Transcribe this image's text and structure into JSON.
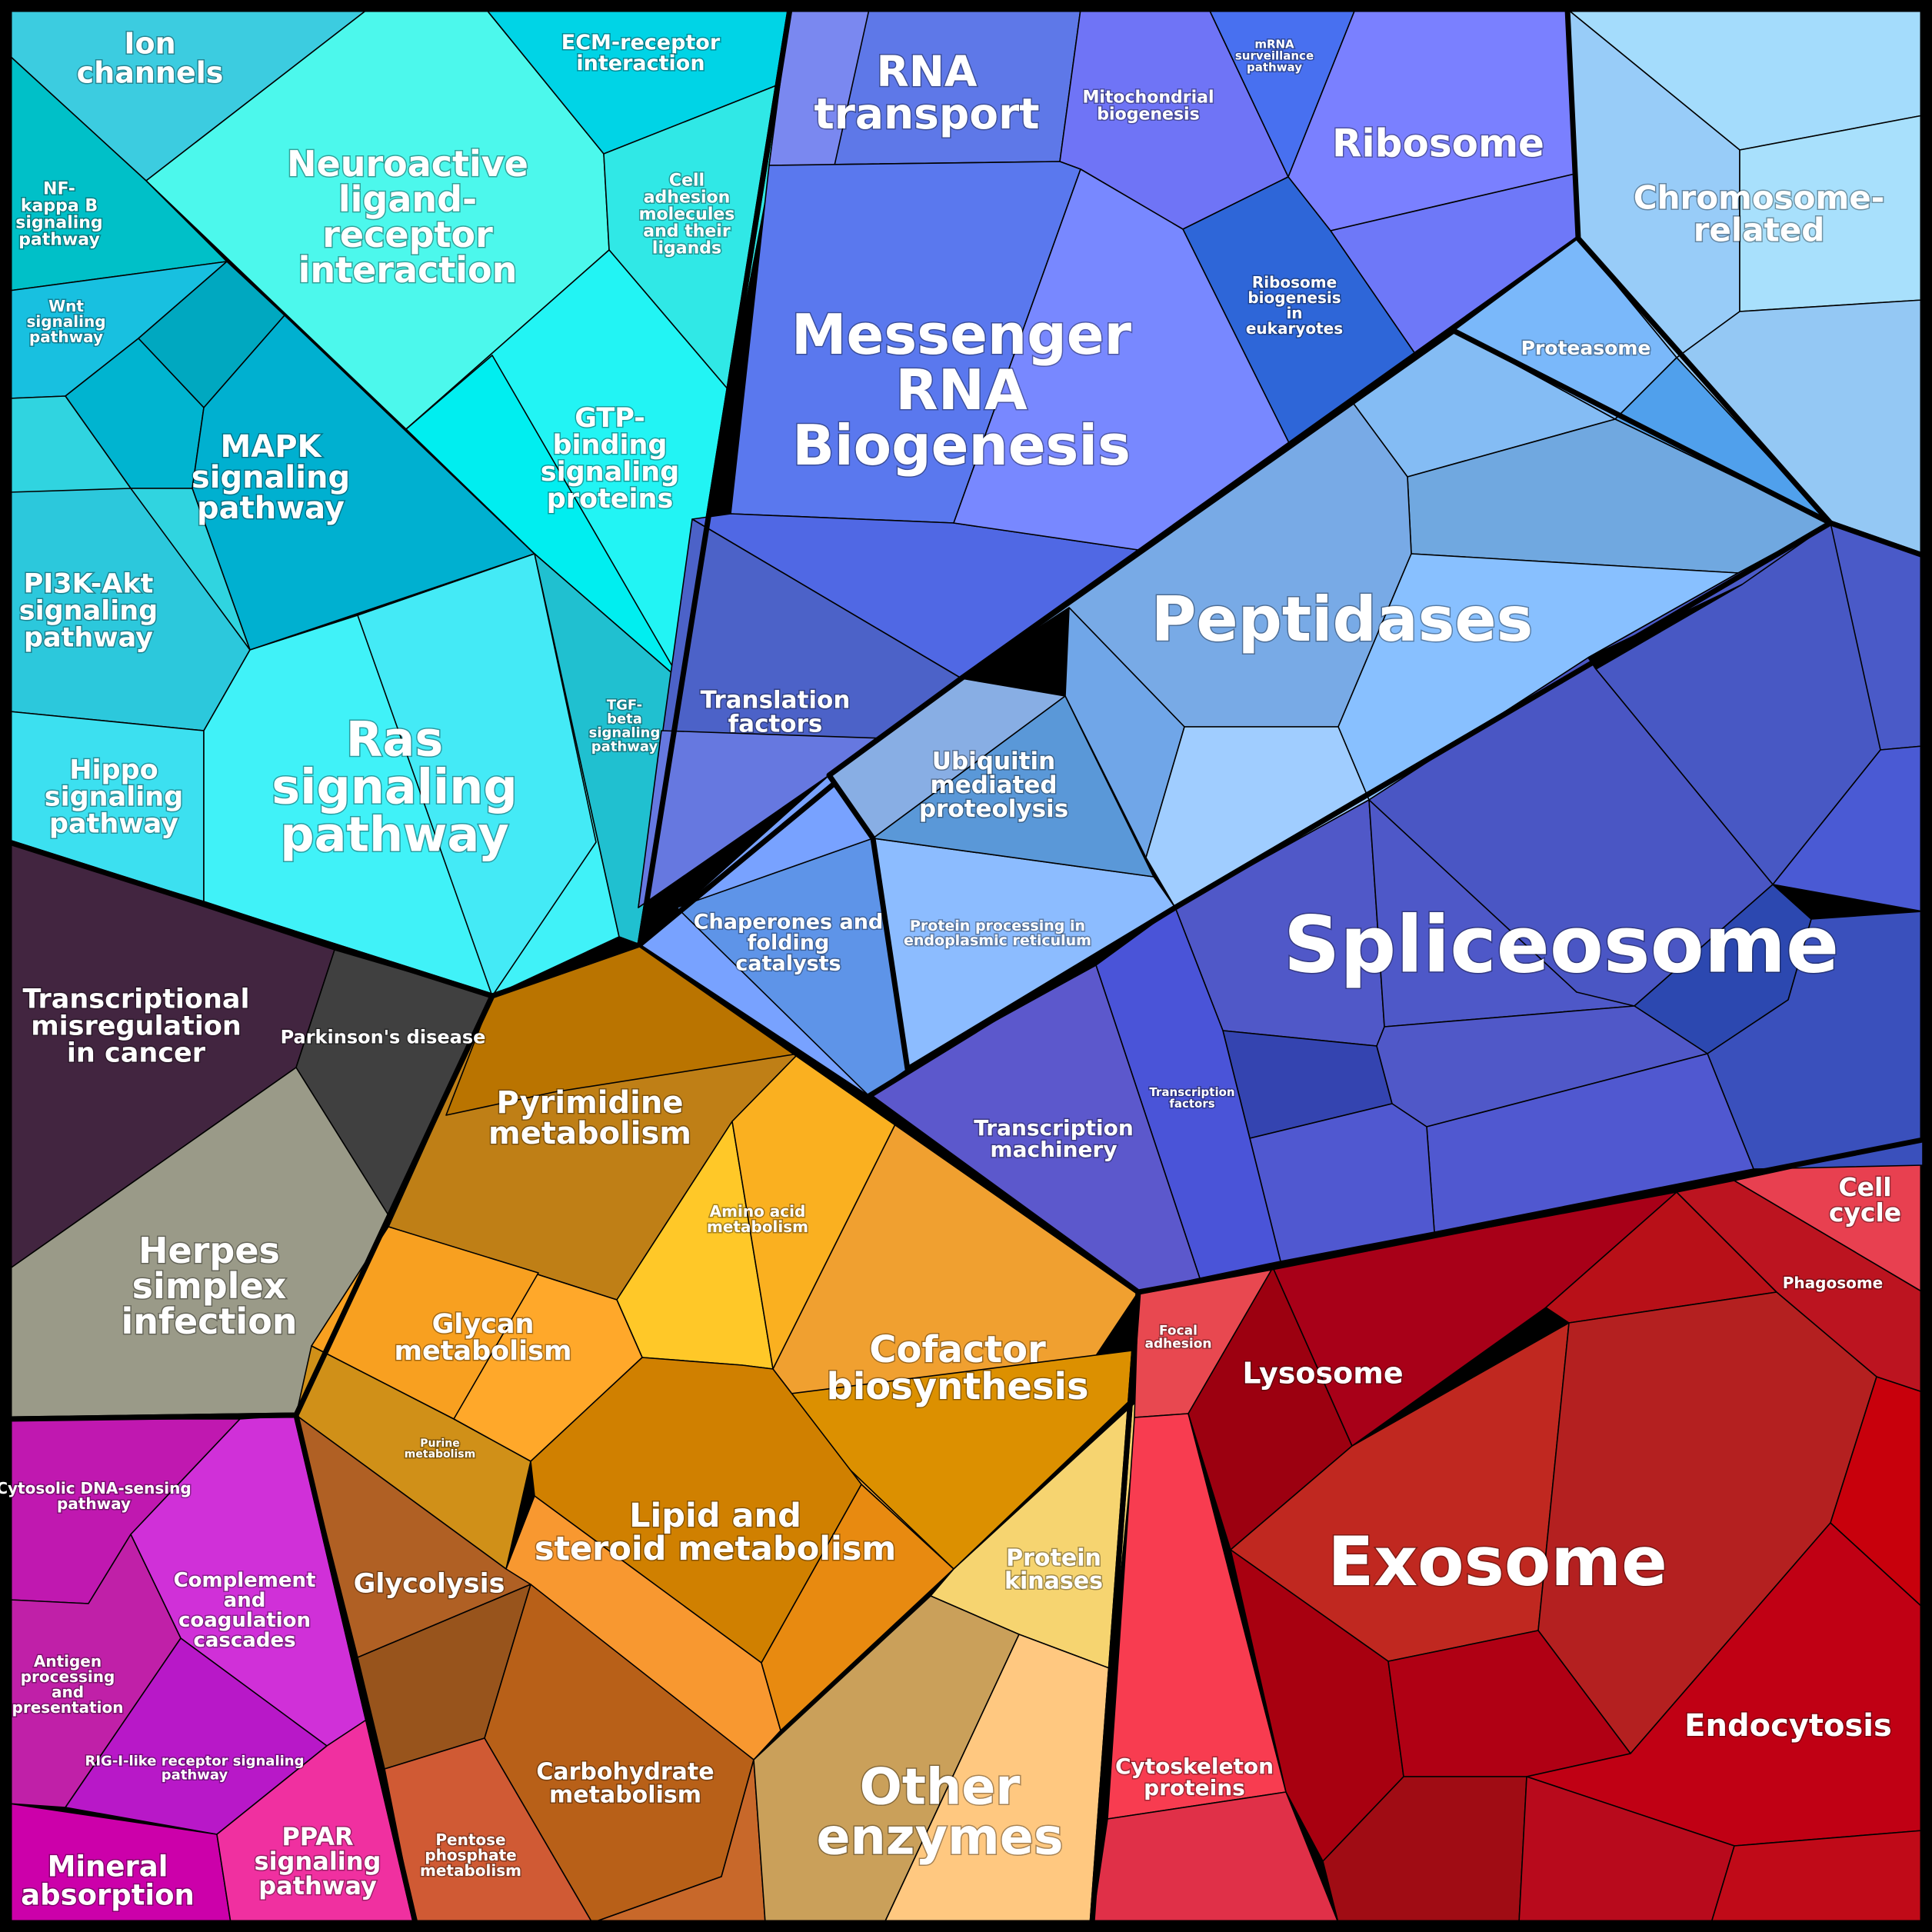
{
  "diagram": {
    "groups": [
      {
        "key": "signaling",
        "color": "#28d8e8"
      },
      {
        "key": "rna",
        "color": "#5a78f0"
      },
      {
        "key": "chromosome",
        "color": "#98ccf8"
      },
      {
        "key": "peptidase",
        "color": "#80b8f0"
      },
      {
        "key": "spliceosome",
        "color": "#4a58c8"
      },
      {
        "key": "disease",
        "color": "#402840"
      },
      {
        "key": "metabolism",
        "color": "#d08818"
      },
      {
        "key": "immune",
        "color": "#c020b8"
      },
      {
        "key": "exosome",
        "color": "#b01020"
      }
    ],
    "labels": {
      "ion_channels": "Ion channels",
      "neuroactive": "Neuroactive ligand-receptor interaction",
      "ecm_receptor": "ECM-receptor interaction",
      "cell_adhesion": "Cell adhesion molecules and their ligands",
      "nf_kappa_b": "NF-kappa B signaling pathway",
      "wnt": "Wnt signaling pathway",
      "mapk": "MAPK signaling pathway",
      "gtp_binding": "GTP-binding signaling proteins",
      "pi3k_akt": "PI3K-Akt signaling pathway",
      "ras": "Ras signaling pathway",
      "tgf_beta": "TGF-beta signaling pathway",
      "hippo": "Hippo signaling pathway",
      "rna_transport": "RNA transport",
      "mitochondrial": "Mitochondrial biogenesis",
      "mrna_surveillance": "mRNA surveillance pathway",
      "ribosome": "Ribosome",
      "messenger_rna": "Messenger RNA Biogenesis",
      "ribosome_biogenesis": "Ribosome biogenesis in eukaryotes",
      "chromosome": "Chromosome-related",
      "proteasome": "Proteasome",
      "peptidases": "Peptidases",
      "translation_factors": "Translation factors",
      "ubiquitin": "Ubiquitin mediated proteolysis",
      "chaperones": "Chaperones and folding catalysts",
      "protein_processing": "Protein processing in endoplasmic reticulum",
      "spliceosome": "Spliceosome",
      "transcription_factors": "Transcription factors",
      "transcription_machinery": "Transcription machinery",
      "transcriptional_misreg": "Transcriptional misregulation in cancer",
      "parkinsons": "Parkinson's disease",
      "herpes": "Herpes simplex infection",
      "pyrimidine": "Pyrimidine metabolism",
      "amino_acid": "Amino acid metabolism",
      "glycan": "Glycan metabolism",
      "cofactor": "Cofactor biosynthesis",
      "purine": "Purine metabolism",
      "lipid_steroid": "Lipid and steroid metabolism",
      "glycolysis": "Glycolysis",
      "protein_kinases": "Protein kinases",
      "carbohydrate": "Carbohydrate metabolism",
      "other_enzymes": "Other enzymes",
      "pentose_phosphate": "Pentose phosphate metabolism",
      "cytosolic_dna": "Cytosolic DNA-sensing pathway",
      "complement": "Complement and coagulation cascades",
      "antigen": "Antigen processing and presentation",
      "rig_i": "RIG-I-like receptor signaling pathway",
      "ppar": "PPAR signaling pathway",
      "mineral_absorption": "Mineral absorption",
      "cell_cycle": "Cell cycle",
      "phagosome": "Phagosome",
      "focal_adhesion": "Focal adhesion",
      "lysosome": "Lysosome",
      "exosome": "Exosome",
      "endocytosis": "Endocytosis",
      "cytoskeleton": "Cytoskeleton proteins"
    }
  }
}
